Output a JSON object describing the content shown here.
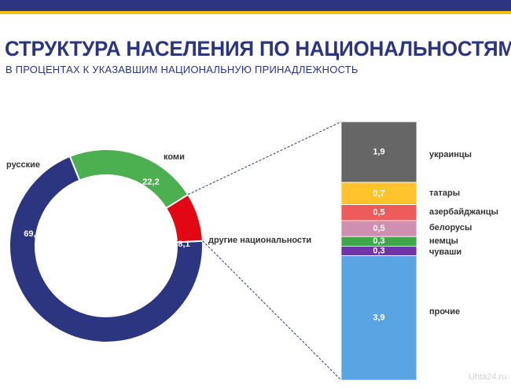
{
  "header": {
    "title": "СТРУКТУРА НАСЕЛЕНИЯ ПО НАЦИОНАЛЬНОСТЯМ",
    "subtitle": "В ПРОЦЕНТАХ  К УКАЗАВШИМ  НАЦИОНАЛЬНУЮ  ПРИНАДЛЕЖНОСТЬ",
    "bar_color": "#2b3580",
    "accent_color": "#f5c200"
  },
  "chart_data": [
    {
      "type": "pie",
      "variant": "donut",
      "slices": [
        {
          "label": "русские",
          "value": 69.7,
          "value_label": "69,7",
          "color": "#2b3580"
        },
        {
          "label": "коми",
          "value": 22.2,
          "value_label": "22,2",
          "color": "#4caf50"
        },
        {
          "label": "другие национальности",
          "value": 8.1,
          "value_label": "8,1",
          "color": "#e30613"
        }
      ]
    },
    {
      "type": "bar",
      "variant": "stacked-100",
      "breakdown_of": "другие национальности",
      "segments": [
        {
          "label": "украинцы",
          "value": 1.9,
          "value_label": "1,9",
          "color": "#666666"
        },
        {
          "label": "татары",
          "value": 0.7,
          "value_label": "0,7",
          "color": "#ffc32b"
        },
        {
          "label": "азербайджанцы",
          "value": 0.5,
          "value_label": "0,5",
          "color": "#ef5b5b"
        },
        {
          "label": "белорусы",
          "value": 0.5,
          "value_label": "0,5",
          "color": "#cf8fb1"
        },
        {
          "label": "немцы",
          "value": 0.3,
          "value_label": "0,3",
          "color": "#3fa64a"
        },
        {
          "label": "чуваши",
          "value": 0.3,
          "value_label": "0,3",
          "color": "#6f35a8"
        },
        {
          "label": "прочие",
          "value": 3.9,
          "value_label": "3,9",
          "color": "#5aa4e3"
        }
      ]
    }
  ],
  "watermark": "Uhta24.ru"
}
